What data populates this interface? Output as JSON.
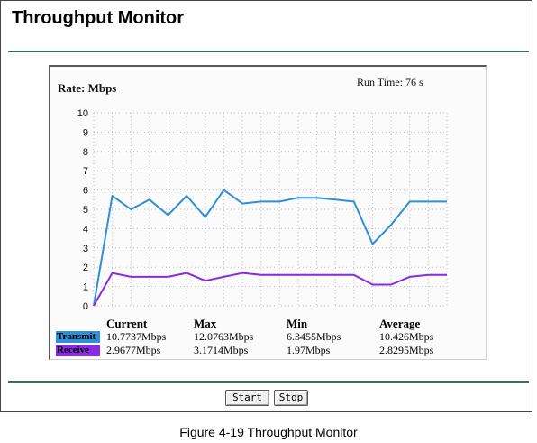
{
  "page": {
    "title": "Throughput Monitor",
    "caption": "Figure 4-19 Throughput Monitor"
  },
  "monitor": {
    "rate_label": "Rate: Mbps",
    "run_time": "Run Time: 76 s"
  },
  "stats": {
    "headers": [
      "Current",
      "Max",
      "Min",
      "Average"
    ],
    "rows": [
      {
        "label": "Transmit",
        "color": "#2f8fd8",
        "values": [
          "10.7737Mbps",
          "12.0763Mbps",
          "6.3455Mbps",
          "10.426Mbps"
        ]
      },
      {
        "label": "Receive",
        "color": "#8a2be2",
        "values": [
          "2.9677Mbps",
          "3.1714Mbps",
          "1.97Mbps",
          "2.8295Mbps"
        ]
      }
    ]
  },
  "buttons": {
    "start": "Start",
    "stop": "Stop"
  },
  "chart_data": {
    "type": "line",
    "ylabel": "Rate: Mbps",
    "ylim": [
      0,
      10
    ],
    "yticks": [
      0,
      1,
      2,
      3,
      4,
      5,
      6,
      7,
      8,
      9,
      10
    ],
    "grid": true,
    "series": [
      {
        "name": "Transmit",
        "color": "#2f8fd8",
        "values": [
          0,
          5.7,
          5.0,
          5.5,
          4.7,
          5.7,
          4.6,
          6.0,
          5.3,
          5.4,
          5.4,
          5.6,
          5.6,
          5.5,
          5.4,
          3.2,
          4.2,
          5.4,
          5.4,
          5.4
        ]
      },
      {
        "name": "Receive",
        "color": "#8a2be2",
        "values": [
          0,
          1.7,
          1.5,
          1.5,
          1.5,
          1.7,
          1.3,
          1.5,
          1.7,
          1.6,
          1.6,
          1.6,
          1.6,
          1.6,
          1.6,
          1.1,
          1.1,
          1.5,
          1.6,
          1.6
        ]
      }
    ]
  }
}
